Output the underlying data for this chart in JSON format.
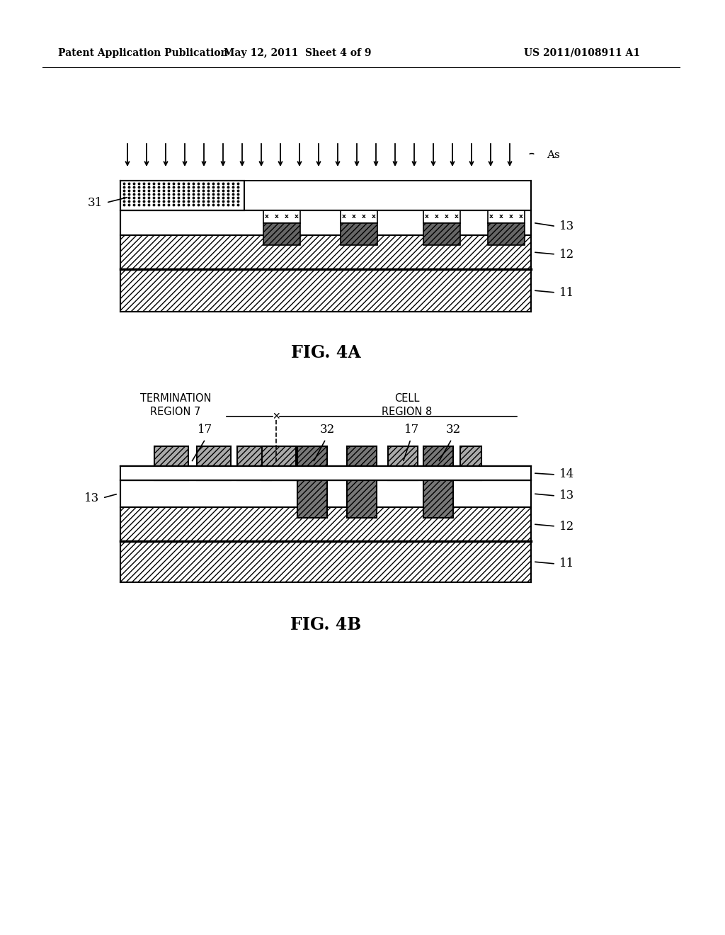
{
  "header_left": "Patent Application Publication",
  "header_center": "May 12, 2011  Sheet 4 of 9",
  "header_right": "US 2011/0108911 A1",
  "fig4a_label": "FIG. 4A",
  "fig4b_label": "FIG. 4B",
  "as_label": "As",
  "label_31": "31",
  "label_13_4a": "13",
  "label_12_4a": "12",
  "label_11_4a": "11",
  "label_17a": "17",
  "label_32a": "32",
  "label_17b": "17",
  "label_32b": "32",
  "label_14": "14",
  "label_13_4b_r": "13",
  "label_12_4b": "12",
  "label_11_4b": "11",
  "label_13_4b_l": "13",
  "label_term": "TERMINATION\nREGION 7",
  "label_cell": "CELL\nREGION 8",
  "bg_color": "#ffffff",
  "line_color": "#000000"
}
